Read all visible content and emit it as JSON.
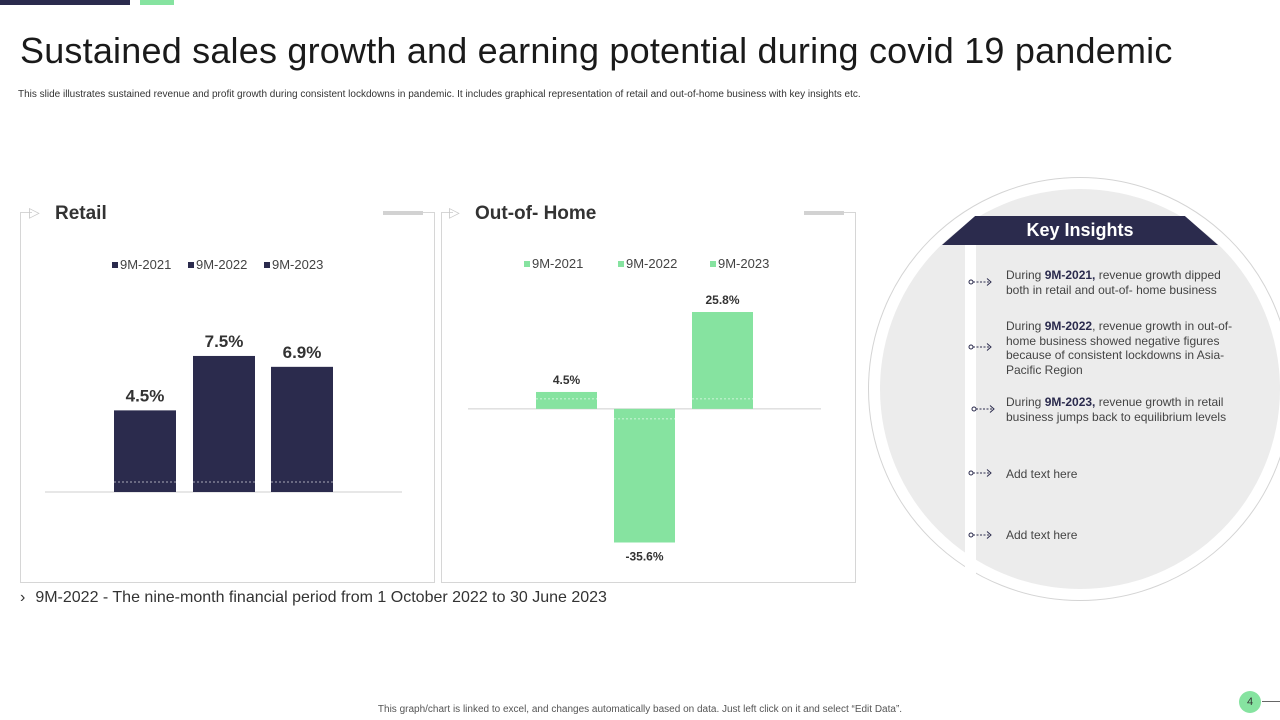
{
  "slide": {
    "title": "Sustained sales growth and earning potential during covid 19 pandemic",
    "subtitle": "This slide illustrates sustained revenue and profit growth during consistent lockdowns in pandemic. It includes graphical representation of retail and out-of-home business with key insights etc.",
    "footnote": "9M-2022 - The nine-month financial period from 1 October 2022 to 30 June 2023",
    "footnote_bullet": "›",
    "bottom_note": "This graph/chart is linked to excel, and changes automatically based on data. Just left click on it and select “Edit Data”.",
    "page_number": "4"
  },
  "colors": {
    "navy": "#2b2b4d",
    "green": "#86e3a0",
    "panel_border": "#d6d6d6"
  },
  "chart_data": [
    {
      "type": "bar",
      "title": "Retail",
      "categories": [
        "9M-2021",
        "9M-2022",
        "9M-2023"
      ],
      "values": [
        4.5,
        7.5,
        6.9
      ],
      "labels": [
        "4.5%",
        "7.5%",
        "6.9%"
      ],
      "legend": [
        "9M-2021",
        "9M-2022",
        "9M-2023"
      ],
      "legend_position": "top",
      "color": "#2b2b4d",
      "ylim": [
        0,
        8.6
      ],
      "grid": false
    },
    {
      "type": "bar",
      "title": "Out-of- Home",
      "categories": [
        "9M-2021",
        "9M-2022",
        "9M-2023"
      ],
      "values": [
        4.5,
        -35.6,
        25.8
      ],
      "labels": [
        "4.5%",
        "-35.6%",
        "25.8%"
      ],
      "legend": [
        "9M-2021",
        "9M-2022",
        "9M-2023"
      ],
      "legend_position": "top",
      "color": "#86e3a0",
      "ylim": [
        -36,
        29
      ],
      "grid": false
    }
  ],
  "insights": {
    "title": "Key Insights",
    "items": [
      {
        "pre": "During ",
        "bold": "9M-2021,",
        "post": " revenue growth dipped both in retail and out-of- home business"
      },
      {
        "pre": "During ",
        "bold": "9M-2022",
        "post": ", revenue growth in out-of-home business showed negative figures because of consistent lockdowns in Asia-Pacific Region"
      },
      {
        "pre": "During ",
        "bold": "9M-2023,",
        "post": " revenue growth in retail business jumps back to equilibrium levels"
      },
      {
        "pre": "Add text here",
        "bold": "",
        "post": ""
      },
      {
        "pre": "Add text here",
        "bold": "",
        "post": ""
      }
    ]
  }
}
